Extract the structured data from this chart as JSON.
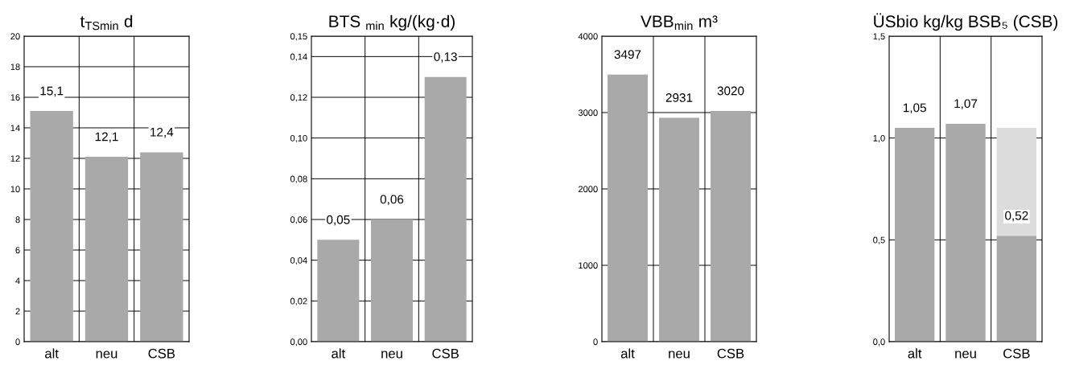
{
  "chart_data": [
    {
      "type": "bar",
      "title": "t$_{TSmin}$ d",
      "categories": [
        "alt",
        "neu",
        "CSB"
      ],
      "values": [
        15.1,
        12.1,
        12.4
      ],
      "color": "#a9a9a9",
      "value_labels": [
        "15,1",
        "12,1",
        "12,4"
      ],
      "ylim": [
        0,
        20
      ],
      "yticks": [
        0,
        2,
        4,
        6,
        8,
        10,
        12,
        14,
        16,
        18,
        20
      ],
      "grid": true
    },
    {
      "type": "bar",
      "title": "BTS $_{min}$ kg/(kg·d)",
      "categories": [
        "alt",
        "neu",
        "CSB"
      ],
      "values": [
        0.05,
        0.06,
        0.13
      ],
      "color": "#a9a9a9",
      "value_labels": [
        "0,05",
        "0,06",
        "0,13"
      ],
      "ylim": [
        0,
        0.15
      ],
      "yticks": [
        {
          "value": 0,
          "label": "0,00"
        },
        {
          "value": 0.02,
          "label": "0,02"
        },
        {
          "value": 0.04,
          "label": "0,04"
        },
        {
          "value": 0.06,
          "label": "0,06"
        },
        {
          "value": 0.08,
          "label": "0,08"
        },
        {
          "value": 0.1,
          "label": "0,10"
        },
        {
          "value": 0.12,
          "label": "0,12"
        },
        {
          "value": 0.14,
          "label": "0,14"
        },
        {
          "value": 0.15,
          "label": "0,15"
        }
      ],
      "grid": true
    },
    {
      "type": "bar",
      "title": "VBB$_{min}$ m³",
      "categories": [
        "alt",
        "neu",
        "CSB"
      ],
      "values": [
        3497,
        2931,
        3020
      ],
      "color": "#a9a9a9",
      "data_labels": true,
      "ylim": [
        0,
        4000
      ],
      "yticks": [
        0,
        1000,
        2000,
        3000,
        4000
      ],
      "grid": true
    },
    {
      "type": "bar",
      "title": "ÜSbio kg/kg BSB₅ (CSB)",
      "categories": [
        "alt",
        "neu",
        "CSB"
      ],
      "stacked": true,
      "series": [
        {
          "color": "#a9a9a9",
          "values": [
            1.05,
            1.07,
            0.52
          ],
          "value_labels": [
            "1,05",
            "1,07",
            "0,52"
          ]
        },
        {
          "color": "#dcdcdc",
          "values": [
            null,
            null,
            0.53
          ]
        }
      ],
      "ylim": [
        0,
        1.5
      ],
      "yticks": [
        {
          "value": 0,
          "label": "0,0"
        },
        {
          "value": 0.5,
          "label": "0,5"
        },
        {
          "value": 1.0,
          "label": "1,0"
        },
        {
          "value": 1.5,
          "label": "1,5"
        }
      ],
      "grid": true
    }
  ]
}
